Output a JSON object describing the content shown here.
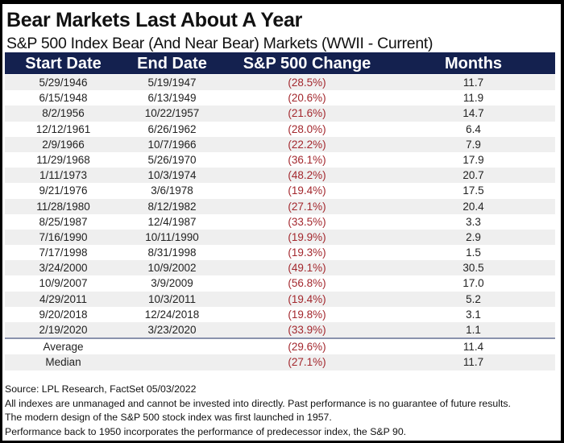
{
  "title": "Bear Markets Last About A Year",
  "subtitle": "S&P 500 Index Bear (And Near Bear) Markets (WWII - Current)",
  "table": {
    "headers": [
      "Start Date",
      "End Date",
      "S&P 500 Change",
      "Months"
    ],
    "rows": [
      [
        "5/29/1946",
        "5/19/1947",
        "(28.5%)",
        "11.7"
      ],
      [
        "6/15/1948",
        "6/13/1949",
        "(20.6%)",
        "11.9"
      ],
      [
        "8/2/1956",
        "10/22/1957",
        "(21.6%)",
        "14.7"
      ],
      [
        "12/12/1961",
        "6/26/1962",
        "(28.0%)",
        "6.4"
      ],
      [
        "2/9/1966",
        "10/7/1966",
        "(22.2%)",
        "7.9"
      ],
      [
        "11/29/1968",
        "5/26/1970",
        "(36.1%)",
        "17.9"
      ],
      [
        "1/11/1973",
        "10/3/1974",
        "(48.2%)",
        "20.7"
      ],
      [
        "9/21/1976",
        "3/6/1978",
        "(19.4%)",
        "17.5"
      ],
      [
        "11/28/1980",
        "8/12/1982",
        "(27.1%)",
        "20.4"
      ],
      [
        "8/25/1987",
        "12/4/1987",
        "(33.5%)",
        "3.3"
      ],
      [
        "7/16/1990",
        "10/11/1990",
        "(19.9%)",
        "2.9"
      ],
      [
        "7/17/1998",
        "8/31/1998",
        "(19.3%)",
        "1.5"
      ],
      [
        "3/24/2000",
        "10/9/2002",
        "(49.1%)",
        "30.5"
      ],
      [
        "10/9/2007",
        "3/9/2009",
        "(56.8%)",
        "17.0"
      ],
      [
        "4/29/2011",
        "10/3/2011",
        "(19.4%)",
        "5.2"
      ],
      [
        "9/20/2018",
        "12/24/2018",
        "(19.8%)",
        "3.1"
      ],
      [
        "2/19/2020",
        "3/23/2020",
        "(33.9%)",
        "1.1"
      ]
    ],
    "summary": [
      [
        "Average",
        "",
        "(29.6%)",
        "11.4"
      ],
      [
        "Median",
        "",
        "(27.1%)",
        "11.7"
      ]
    ]
  },
  "footer": [
    "Source: LPL Research, FactSet 05/03/2022",
    "All indexes are unmanaged and cannot be invested into directly. Past performance is no guarantee of future results.",
    "The modern design of the S&P 500 stock index was first launched in 1957.",
    "Performance back to 1950 incorporates the performance of predecessor index, the S&P 90."
  ],
  "colors": {
    "header_bg": "#14214f",
    "negative": "#a3272d",
    "alt_row": "#efefef"
  }
}
